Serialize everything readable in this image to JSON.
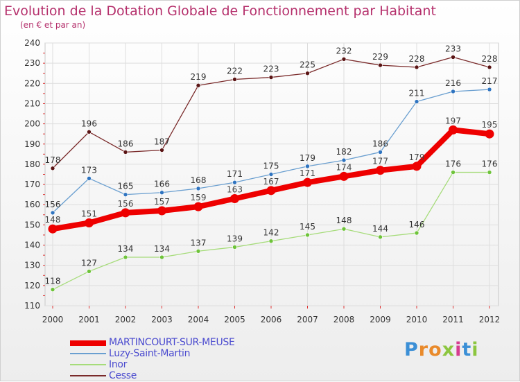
{
  "title": "Evolution de la Dotation Globale de Fonctionnement par Habitant",
  "subtitle": "(en € et par an)",
  "logo": {
    "text": "Proxiti",
    "letters": [
      "P",
      "r",
      "o",
      "x",
      "i",
      "t",
      "i"
    ],
    "colors": [
      "#3b8fd6",
      "#e98a2b",
      "#e98a2b",
      "#8cc63f",
      "#d63b8f",
      "#3b8fd6",
      "#8cc63f"
    ]
  },
  "chart_data": {
    "type": "line",
    "title": "Evolution de la Dotation Globale de Fonctionnement par Habitant",
    "subtitle": "(en € et par an)",
    "xlabel": "",
    "ylabel": "",
    "x": [
      2000,
      2001,
      2002,
      2003,
      2004,
      2005,
      2006,
      2007,
      2008,
      2009,
      2010,
      2011,
      2012
    ],
    "ylim": [
      110,
      240
    ],
    "yticks": [
      110,
      120,
      130,
      140,
      150,
      160,
      170,
      180,
      190,
      200,
      210,
      220,
      230,
      240
    ],
    "grid": true,
    "legend": "bottom-left",
    "series": [
      {
        "name": "MARTINCOURT-SUR-MEUSE",
        "values": [
          148,
          151,
          156,
          157,
          159,
          163,
          167,
          171,
          174,
          177,
          179,
          197,
          195
        ],
        "color": "#ee0000",
        "marker": "#ee0000",
        "label_color": "#ffffff",
        "width": 8,
        "emphasis": true
      },
      {
        "name": "Luzy-Saint-Martin",
        "values": [
          156,
          173,
          165,
          166,
          168,
          171,
          175,
          179,
          182,
          186,
          211,
          216,
          217
        ],
        "color": "#6a9fd0",
        "marker": "#2f74c0",
        "label_color": "#333333",
        "width": 1.3,
        "emphasis": false
      },
      {
        "name": "Inor",
        "values": [
          118,
          127,
          134,
          134,
          137,
          139,
          142,
          145,
          148,
          144,
          146,
          176,
          176
        ],
        "color": "#a6dc7a",
        "marker": "#6ec33a",
        "label_color": "#333333",
        "width": 1.3,
        "emphasis": false
      },
      {
        "name": "Cesse",
        "values": [
          178,
          196,
          186,
          187,
          219,
          222,
          223,
          225,
          232,
          229,
          228,
          233,
          228
        ],
        "color": "#7a2a2a",
        "marker": "#5a1414",
        "label_color": "#333333",
        "width": 1.3,
        "emphasis": false
      }
    ]
  }
}
